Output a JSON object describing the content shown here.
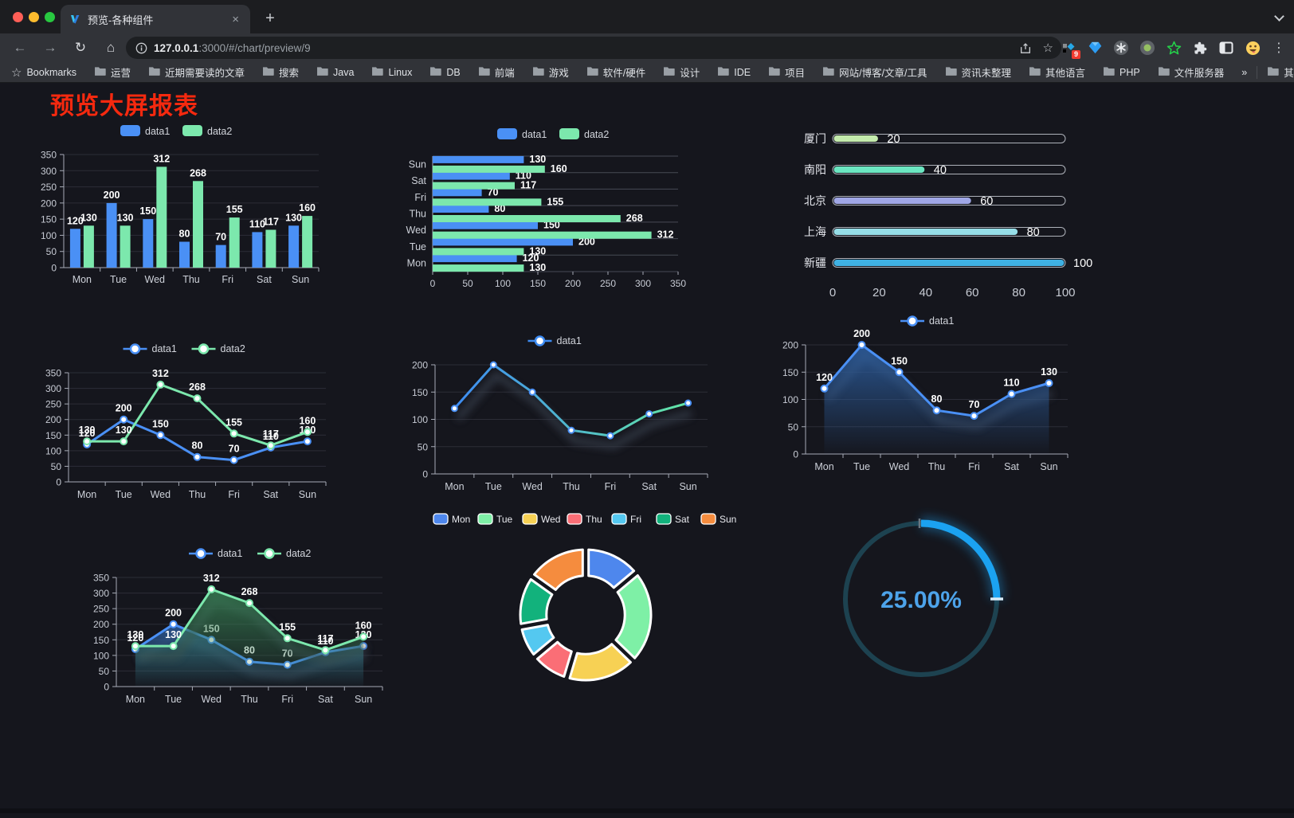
{
  "browser": {
    "traffic_lights": {
      "close": "#ff5f57",
      "minimize": "#febc2e",
      "maximize": "#28c840"
    },
    "tab": {
      "title": "预览-各种组件"
    },
    "icons": {
      "back": "←",
      "forward": "→",
      "reload": "↻",
      "home": "⌂",
      "close_tab": "×",
      "new_tab": "+",
      "menu": "⋮",
      "bookmark_star": "☆",
      "overflow": "»"
    },
    "toolbar": {
      "url": {
        "host": "127.0.0.1",
        "rest": ":3000/#/chart/preview/9"
      },
      "extension_badge": "9"
    },
    "bookmarks_bar": {
      "bookmarks_label": "Bookmarks",
      "folders": [
        "运营",
        "近期需要读的文章",
        "搜索",
        "Java",
        "Linux",
        "DB",
        "前端",
        "游戏",
        "软件/硬件",
        "设计",
        "IDE",
        "项目",
        "网站/博客/文章/工具",
        "资讯未整理",
        "其他语言",
        "PHP",
        "文件服务器"
      ],
      "other_bookmarks_label": "其他书签"
    }
  },
  "page": {
    "title": "预览大屏报表",
    "title_color": "#f5290f",
    "background": "#15161d"
  },
  "chart_data": [
    {
      "id": "grouped-bar",
      "type": "bar",
      "categories": [
        "Mon",
        "Tue",
        "Wed",
        "Thu",
        "Fri",
        "Sat",
        "Sun"
      ],
      "series": [
        {
          "name": "data1",
          "color": "#4a90f5",
          "values": [
            120,
            200,
            150,
            80,
            70,
            110,
            130
          ]
        },
        {
          "name": "data2",
          "color": "#7ce8ad",
          "values": [
            130,
            130,
            312,
            268,
            155,
            117,
            160
          ]
        }
      ],
      "ylim": [
        0,
        350
      ],
      "ytick_step": 50,
      "legend_position": "top",
      "data_labels": true,
      "grid": true
    },
    {
      "id": "horizontal-bar",
      "type": "bar",
      "orientation": "horizontal",
      "categories": [
        "Mon",
        "Tue",
        "Wed",
        "Thu",
        "Fri",
        "Sat",
        "Sun"
      ],
      "category_axis_starts_at_bottom": true,
      "series": [
        {
          "name": "data1",
          "color": "#4a90f5",
          "values": [
            120,
            200,
            150,
            80,
            70,
            110,
            130
          ]
        },
        {
          "name": "data2",
          "color": "#7ce8ad",
          "values": [
            130,
            130,
            312,
            268,
            155,
            117,
            160
          ]
        }
      ],
      "xlim": [
        0,
        350
      ],
      "xtick_step": 50,
      "legend_position": "top",
      "data_labels": true
    },
    {
      "id": "progress-bars",
      "type": "bar",
      "orientation": "horizontal",
      "categories": [
        "厦门",
        "南阳",
        "北京",
        "上海",
        "新疆"
      ],
      "values": [
        20,
        40,
        60,
        80,
        100
      ],
      "bar_colors": [
        "#c4ebad",
        "#6be6c1",
        "#a0a7e6",
        "#96dee8",
        "#3fb1e3"
      ],
      "xlim": [
        0,
        100
      ],
      "xticks": [
        0,
        20,
        40,
        60,
        80,
        100
      ],
      "data_labels": true,
      "track_outline": true
    },
    {
      "id": "line-two-series",
      "type": "line",
      "categories": [
        "Mon",
        "Tue",
        "Wed",
        "Thu",
        "Fri",
        "Sat",
        "Sun"
      ],
      "series": [
        {
          "name": "data1",
          "color": "#4a90f5",
          "values": [
            120,
            200,
            150,
            80,
            70,
            110,
            130
          ]
        },
        {
          "name": "data2",
          "color": "#7ce8ad",
          "values": [
            130,
            130,
            312,
            268,
            155,
            117,
            160
          ]
        }
      ],
      "ylim": [
        0,
        350
      ],
      "ytick_step": 50,
      "legend_position": "top",
      "data_labels": true,
      "markers": true
    },
    {
      "id": "gradient-line",
      "type": "line",
      "categories": [
        "Mon",
        "Tue",
        "Wed",
        "Thu",
        "Fri",
        "Sat",
        "Sun"
      ],
      "series": [
        {
          "name": "data1",
          "gradient": [
            "#3d8bf2",
            "#63e6a5"
          ],
          "values": [
            120,
            200,
            150,
            80,
            70,
            110,
            130
          ]
        }
      ],
      "ylim": [
        0,
        200
      ],
      "ytick_step": 50,
      "legend_position": "top",
      "data_labels": false,
      "markers": true,
      "marker_r": 3.5,
      "shadow": true,
      "right": 7
    },
    {
      "id": "area-line-blue",
      "type": "area",
      "categories": [
        "Mon",
        "Tue",
        "Wed",
        "Thu",
        "Fri",
        "Sat",
        "Sun"
      ],
      "series": [
        {
          "name": "data1",
          "color": "#4a90f5",
          "area": [
            "rgba(45,96,163,0.85)",
            "rgba(45,96,163,0.02)"
          ],
          "values": [
            120,
            200,
            150,
            80,
            70,
            110,
            130
          ]
        }
      ],
      "ylim": [
        0,
        200
      ],
      "ytick_step": 50,
      "legend_position": "top",
      "data_labels": true,
      "markers": true,
      "shadow": true,
      "right": 25
    },
    {
      "id": "area-line-two-series",
      "type": "area",
      "categories": [
        "Mon",
        "Tue",
        "Wed",
        "Thu",
        "Fri",
        "Sat",
        "Sun"
      ],
      "series": [
        {
          "name": "data1",
          "color": "#4a90f5",
          "area": [
            "rgba(45,96,163,0.8)",
            "rgba(45,96,163,0.02)"
          ],
          "values": [
            120,
            200,
            150,
            80,
            70,
            110,
            130
          ]
        },
        {
          "name": "data2",
          "color": "#7ce8ad",
          "area": [
            "rgba(56,130,84,0.8)",
            "rgba(56,130,84,0.02)"
          ],
          "values": [
            130,
            130,
            312,
            268,
            155,
            117,
            160
          ]
        }
      ],
      "ylim": [
        0,
        350
      ],
      "ytick_step": 50,
      "legend_position": "top",
      "data_labels": true,
      "markers": true,
      "shadow": true,
      "right": 50
    },
    {
      "id": "donut-pie",
      "type": "pie",
      "categories": [
        "Mon",
        "Tue",
        "Wed",
        "Thu",
        "Fri",
        "Sat",
        "Sun"
      ],
      "values": [
        120,
        200,
        150,
        80,
        70,
        110,
        130
      ],
      "colors": [
        "#4e87ed",
        "#7ef0a6",
        "#f7d154",
        "#fa6e76",
        "#54c8f0",
        "#12b27c",
        "#f58c3e"
      ],
      "inner_radius_ratio": 0.6,
      "legend_position": "top",
      "slice_border_color": "#ffffff"
    },
    {
      "id": "gauge",
      "type": "gauge",
      "value": 25,
      "max": 100,
      "label": "25.00%",
      "progress_color": "#1ba2f1",
      "track_color": "#1d4250",
      "label_color": "#4da3ea"
    }
  ]
}
